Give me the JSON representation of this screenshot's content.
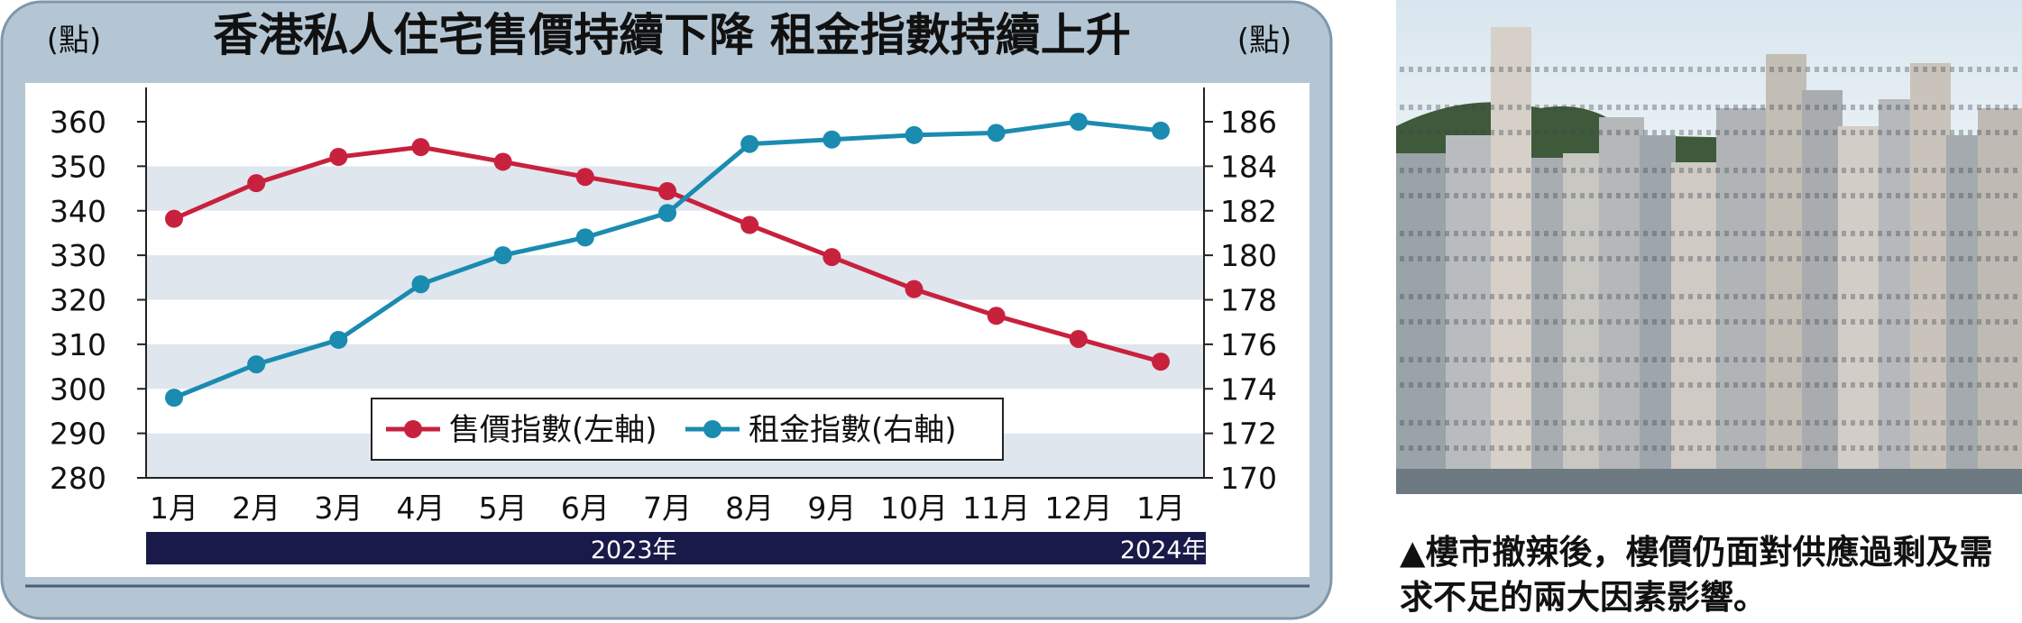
{
  "chart_data": {
    "type": "line",
    "title": "香港私人住宅售價持續下降  租金指數持續上升",
    "left_unit": "(點)",
    "right_unit": "(點)",
    "categories": [
      "1月",
      "2月",
      "3月",
      "4月",
      "5月",
      "6月",
      "7月",
      "8月",
      "9月",
      "10月",
      "11月",
      "12月",
      "1月"
    ],
    "year_labels": [
      {
        "label": "2023年",
        "from_index": 0,
        "to_index": 11
      },
      {
        "label": "2024年",
        "from_index": 12,
        "to_index": 12
      }
    ],
    "y_left": {
      "min": 280,
      "max": 360,
      "ticks": [
        280,
        290,
        300,
        310,
        320,
        330,
        340,
        350,
        360
      ]
    },
    "y_right": {
      "min": 170,
      "max": 186,
      "ticks": [
        170,
        172,
        174,
        176,
        178,
        180,
        182,
        184,
        186
      ]
    },
    "series": [
      {
        "name": "售價指數(左軸)",
        "axis": "left",
        "color": "#c8213d",
        "values": [
          338.2,
          346.2,
          352.1,
          354.3,
          351.0,
          347.6,
          344.4,
          336.8,
          329.6,
          322.4,
          316.4,
          311.2,
          306.1
        ]
      },
      {
        "name": "租金指數(右軸)",
        "axis": "right",
        "color": "#1b8bb0",
        "values": [
          173.6,
          175.1,
          176.2,
          178.7,
          180.0,
          180.8,
          181.9,
          185.0,
          185.2,
          185.4,
          185.5,
          186.0,
          185.6
        ]
      }
    ],
    "grid": "horizontal-bands",
    "legend_position": "bottom-center"
  },
  "caption": "▲樓市撤辣後，樓價仍面對供應過剩及需求不足的兩大因素影響。",
  "photo": {
    "description_icon": "city-skyline-photo"
  }
}
